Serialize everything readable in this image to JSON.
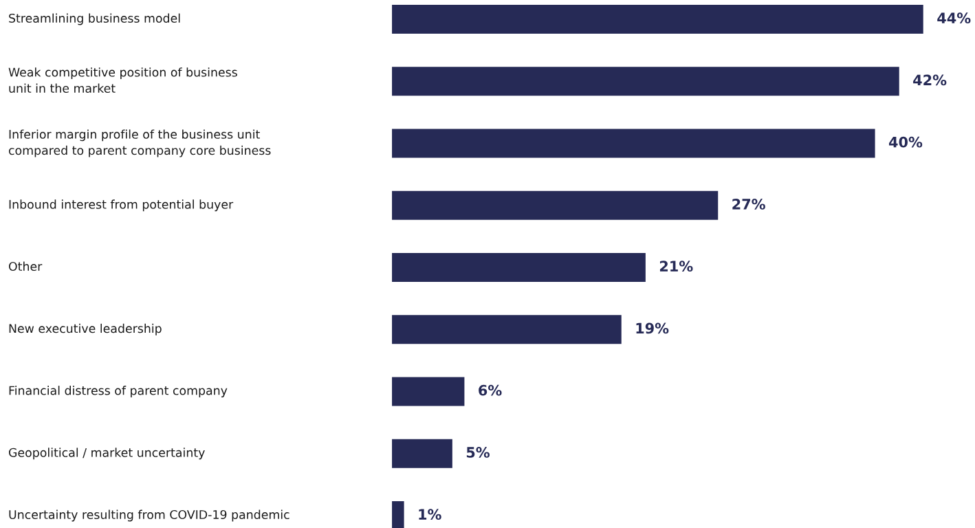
{
  "chart_data": {
    "type": "bar",
    "orientation": "horizontal",
    "categories": [
      "Streamlining business model",
      "Weak competitive position of business\nunit in the market",
      "Inferior margin profile of the business unit\ncompared to parent company core business",
      "Inbound interest from potential buyer",
      "Other",
      "New executive leadership",
      "Financial distress of parent company",
      "Geopolitical / market uncertainty",
      "Uncertainty resulting from COVID-19 pandemic"
    ],
    "values": [
      44,
      42,
      40,
      27,
      21,
      19,
      6,
      5,
      1
    ],
    "value_labels": [
      "44%",
      "42%",
      "40%",
      "27%",
      "21%",
      "19%",
      "6%",
      "5%",
      "1%"
    ],
    "color": "#262a56"
  }
}
